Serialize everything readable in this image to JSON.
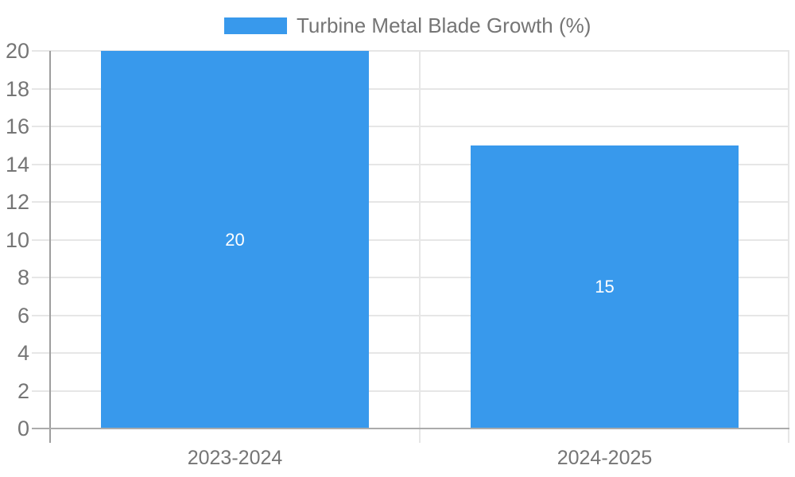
{
  "chart_data": {
    "type": "bar",
    "title": "Turbine Metal Blade Growth (%)",
    "legend_position": "top",
    "legend_entries": [
      "Turbine Metal Blade Growth (%)"
    ],
    "categories": [
      "2023-2024",
      "2024-2025"
    ],
    "values": [
      20,
      15
    ],
    "data_labels": [
      "20",
      "15"
    ],
    "xlabel": "",
    "ylabel": "",
    "ylim": [
      0,
      20
    ],
    "ytick_step": 2,
    "yticks": [
      0,
      2,
      4,
      6,
      8,
      10,
      12,
      14,
      16,
      18,
      20
    ],
    "grid": true,
    "colors": {
      "bar": "#3899ec",
      "grid_line": "#e6e6e6",
      "axis_line": "#ababab",
      "y_axis_line": "#9e9e9e",
      "tick_text": "#757575",
      "legend_text": "#757575",
      "data_label": "#ffffff",
      "background": "#ffffff"
    }
  }
}
